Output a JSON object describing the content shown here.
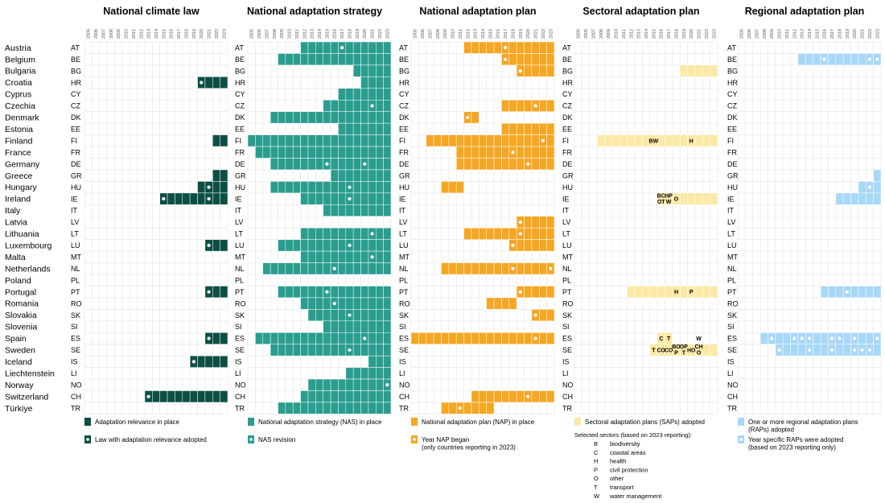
{
  "years": [
    "2005",
    "2006",
    "2007",
    "2008",
    "2009",
    "2010",
    "2011",
    "2012",
    "2013",
    "2014",
    "2015",
    "2016",
    "2017",
    "2018",
    "2019",
    "2020",
    "2021",
    "2022",
    "2023"
  ],
  "countries": [
    {
      "name": "Austria",
      "code": "AT"
    },
    {
      "name": "Belgium",
      "code": "BE"
    },
    {
      "name": "Bulgaria",
      "code": "BG"
    },
    {
      "name": "Croatia",
      "code": "HR"
    },
    {
      "name": "Cyprus",
      "code": "CY"
    },
    {
      "name": "Czechia",
      "code": "CZ"
    },
    {
      "name": "Denmark",
      "code": "DK"
    },
    {
      "name": "Estonia",
      "code": "EE"
    },
    {
      "name": "Finland",
      "code": "FI"
    },
    {
      "name": "France",
      "code": "FR"
    },
    {
      "name": "Germany",
      "code": "DE"
    },
    {
      "name": "Greece",
      "code": "GR"
    },
    {
      "name": "Hungary",
      "code": "HU"
    },
    {
      "name": "Ireland",
      "code": "IE"
    },
    {
      "name": "Italy",
      "code": "IT"
    },
    {
      "name": "Latvia",
      "code": "LV"
    },
    {
      "name": "Lithuania",
      "code": "LT"
    },
    {
      "name": "Luxembourg",
      "code": "LU"
    },
    {
      "name": "Malta",
      "code": "MT"
    },
    {
      "name": "Netherlands",
      "code": "NL"
    },
    {
      "name": "Poland",
      "code": "PL"
    },
    {
      "name": "Portugal",
      "code": "PT"
    },
    {
      "name": "Romania",
      "code": "RO"
    },
    {
      "name": "Slovakia",
      "code": "SK"
    },
    {
      "name": "Slovenia",
      "code": "SI"
    },
    {
      "name": "Spain",
      "code": "ES"
    },
    {
      "name": "Sweden",
      "code": "SE"
    },
    {
      "name": "Iceland",
      "code": "IS"
    },
    {
      "name": "Liechtenstein",
      "code": "LI"
    },
    {
      "name": "Norway",
      "code": "NO"
    },
    {
      "name": "Switzerland",
      "code": "CH"
    },
    {
      "name": "Türkiye",
      "code": "TR"
    }
  ],
  "chart_data": [
    {
      "type": "heatmap",
      "title": "National climate law",
      "color": "#0d4f45",
      "mark_color": "#ffffff",
      "legend": [
        {
          "kind": "fill",
          "label": "Adaptation relevance in place"
        },
        {
          "kind": "mark",
          "label": "Law with adaptation relevance adopted"
        }
      ],
      "rows": {
        "HR": {
          "start": 2020,
          "marks": [
            2020
          ]
        },
        "FI": {
          "start": 2022,
          "marks": []
        },
        "GR": {
          "start": 2022,
          "marks": []
        },
        "HU": {
          "start": 2020,
          "marks": [
            2021
          ]
        },
        "IE": {
          "start": 2015,
          "marks": [
            2015,
            2021
          ]
        },
        "LU": {
          "start": 2021,
          "marks": [
            2021
          ]
        },
        "PT": {
          "start": 2021,
          "marks": [
            2021
          ]
        },
        "ES": {
          "start": 2021,
          "marks": [
            2021
          ]
        },
        "IS": {
          "start": 2019,
          "marks": [
            2019
          ]
        },
        "CH": {
          "start": 2013,
          "marks": [
            2013
          ]
        }
      }
    },
    {
      "type": "heatmap",
      "title": "National adaptation strategy",
      "color": "#2a9d8f",
      "mark_color": "#ffffff",
      "legend": [
        {
          "kind": "fill",
          "label": "National adaptation strategy (NAS) in place"
        },
        {
          "kind": "mark",
          "label": "NAS revision"
        }
      ],
      "rows": {
        "AT": {
          "start": 2012,
          "marks": [
            2017
          ]
        },
        "BE": {
          "start": 2009,
          "marks": []
        },
        "BG": {
          "start": 2019,
          "marks": []
        },
        "HR": {
          "start": 2020,
          "marks": []
        },
        "CY": {
          "start": 2017,
          "marks": []
        },
        "CZ": {
          "start": 2015,
          "marks": [
            2021
          ]
        },
        "DK": {
          "start": 2008,
          "marks": []
        },
        "EE": {
          "start": 2017,
          "marks": []
        },
        "FI": {
          "start": 2005,
          "marks": []
        },
        "FR": {
          "start": 2006,
          "marks": []
        },
        "DE": {
          "start": 2008,
          "marks": [
            2015,
            2020
          ]
        },
        "GR": {
          "start": 2016,
          "marks": []
        },
        "HU": {
          "start": 2008,
          "marks": [
            2018
          ]
        },
        "IE": {
          "start": 2012,
          "marks": [
            2018
          ]
        },
        "IT": {
          "start": 2015,
          "marks": []
        },
        "LT": {
          "start": 2012,
          "marks": [
            2021
          ]
        },
        "LU": {
          "start": 2009,
          "marks": [
            2018
          ]
        },
        "MT": {
          "start": 2012,
          "marks": [
            2021
          ]
        },
        "NL": {
          "start": 2007,
          "marks": [
            2016
          ]
        },
        "PT": {
          "start": 2009,
          "marks": [
            2015
          ]
        },
        "RO": {
          "start": 2012,
          "marks": [
            2016
          ]
        },
        "SK": {
          "start": 2013,
          "marks": [
            2018
          ]
        },
        "SI": {
          "start": 2015,
          "marks": []
        },
        "ES": {
          "start": 2006,
          "marks": [
            2020
          ]
        },
        "SE": {
          "start": 2008,
          "marks": [
            2018
          ]
        },
        "IS": {
          "start": 2021,
          "marks": []
        },
        "LI": {
          "start": 2018,
          "marks": []
        },
        "NO": {
          "start": 2013,
          "marks": [
            2023
          ]
        },
        "CH": {
          "start": 2012,
          "marks": []
        },
        "TR": {
          "start": 2009,
          "marks": []
        }
      }
    },
    {
      "type": "heatmap",
      "title": "National adaptation plan",
      "color": "#f5a623",
      "mark_color": "#ffffff",
      "legend": [
        {
          "kind": "fill",
          "label": "National adaptation plan (NAP) in place"
        },
        {
          "kind": "mark",
          "label": "Year NAP began\n(only countries reporting in 2023)"
        }
      ],
      "rows": {
        "AT": {
          "start": 2012,
          "marks": [
            2017
          ]
        },
        "BE": {
          "start": 2017,
          "marks": [
            2017
          ]
        },
        "BG": {
          "start": 2019,
          "marks": [
            2019
          ]
        },
        "CZ": {
          "start": 2017,
          "marks": [
            2021
          ]
        },
        "DK": {
          "start": 2012,
          "end": 2013,
          "marks": [
            2012
          ]
        },
        "EE": {
          "start": 2017,
          "marks": []
        },
        "FI": {
          "start": 2007,
          "marks": [
            2022
          ]
        },
        "FR": {
          "start": 2011,
          "marks": [
            2018
          ]
        },
        "DE": {
          "start": 2011,
          "marks": [
            2020
          ]
        },
        "HU": {
          "start": 2009,
          "end": 2011,
          "marks": []
        },
        "LV": {
          "start": 2019,
          "marks": [
            2019
          ]
        },
        "LT": {
          "start": 2012,
          "marks": [
            2019
          ]
        },
        "LU": {
          "start": 2018,
          "marks": [
            2018
          ]
        },
        "NL": {
          "start": 2009,
          "marks": [
            2018,
            2023
          ]
        },
        "PT": {
          "start": 2019,
          "marks": [
            2019
          ]
        },
        "RO": {
          "start": 2015,
          "end": 2018,
          "marks": []
        },
        "SK": {
          "start": 2021,
          "marks": [
            2021
          ]
        },
        "ES": {
          "start": 2005,
          "marks": [
            2021
          ]
        },
        "CH": {
          "start": 2013,
          "marks": [
            2020
          ]
        },
        "TR": {
          "start": 2009,
          "end": 2015,
          "marks": [
            2011
          ]
        }
      }
    },
    {
      "type": "heatmap",
      "title": "Sectoral adaptation plan",
      "color": "#fbe9a5",
      "legend": [
        {
          "kind": "fill",
          "label": "Sectoral adaptation plans (SAPs) adopted"
        }
      ],
      "rows": {
        "BG": {
          "start": 2019,
          "marks": []
        },
        "FI": {
          "start": 2008,
          "marks": [],
          "labels": [
            {
              "year": 2015,
              "text": "BW"
            },
            {
              "year": 2020,
              "text": "H"
            }
          ]
        },
        "IE": {
          "start": 2016,
          "marks": [],
          "labels": [
            {
              "year": 2016,
              "text": "BC OT"
            },
            {
              "year": 2017,
              "text": "HP W"
            },
            {
              "year": 2018,
              "text": "O"
            }
          ]
        },
        "PT": {
          "start": 2012,
          "marks": [],
          "labels": [
            {
              "year": 2018,
              "text": "H"
            },
            {
              "year": 2020,
              "text": "P"
            }
          ]
        },
        "ES": {
          "start": 2016,
          "end": 2017,
          "marks": [],
          "labels": [
            {
              "year": 2016,
              "text": "C"
            },
            {
              "year": 2017,
              "text": "T"
            },
            {
              "year": 2021,
              "text": "W"
            }
          ]
        },
        "SE": {
          "start": 2015,
          "marks": [],
          "labels": [
            {
              "year": 2015,
              "text": "T"
            },
            {
              "year": 2016,
              "text": "CO"
            },
            {
              "year": 2017,
              "text": "CO"
            },
            {
              "year": 2018,
              "text": "BO P"
            },
            {
              "year": 2019,
              "text": "OP T"
            },
            {
              "year": 2020,
              "text": "HO"
            },
            {
              "year": 2021,
              "text": "CH O"
            }
          ]
        }
      },
      "sector_heading": "Selected sectors (based on 2023 reporting):",
      "sectors": [
        {
          "key": "B",
          "label": "biodiversity"
        },
        {
          "key": "C",
          "label": "coastal areas"
        },
        {
          "key": "H",
          "label": "health"
        },
        {
          "key": "P",
          "label": "civil protection"
        },
        {
          "key": "O",
          "label": "other"
        },
        {
          "key": "T",
          "label": "transport"
        },
        {
          "key": "W",
          "label": "water management"
        }
      ]
    },
    {
      "type": "heatmap",
      "title": "Regional adaptation plan",
      "color": "#a8d8f8",
      "mark_color": "#ffffff",
      "legend": [
        {
          "kind": "fill",
          "label": "One or more regional adaptation plans\n(RAPs) adopted"
        },
        {
          "kind": "mark",
          "label": "Year specific RAPs were adopted\n(based on 2023 reporting only)"
        }
      ],
      "rows": {
        "BE": {
          "start": 2013,
          "marks": [
            2016,
            2022,
            2023
          ]
        },
        "GR": {
          "start": 2023,
          "marks": []
        },
        "HU": {
          "start": 2021,
          "marks": [
            2022
          ]
        },
        "IE": {
          "start": 2018,
          "marks": []
        },
        "PT": {
          "start": 2016,
          "marks": [
            2019
          ]
        },
        "ES": {
          "start": 2008,
          "marks": [
            2009,
            2012,
            2013,
            2014,
            2017,
            2018,
            2020,
            2023
          ]
        },
        "SE": {
          "start": 2010,
          "marks": [
            2010,
            2014,
            2017,
            2020,
            2021,
            2022
          ]
        }
      }
    }
  ]
}
